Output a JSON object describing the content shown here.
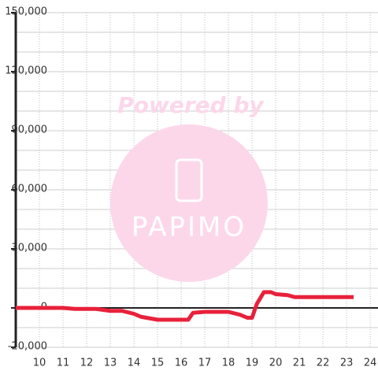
{
  "chart_data": {
    "type": "line",
    "watermark": {
      "title": "Powered by",
      "brand": "PAPIMO"
    },
    "x": [
      9.0,
      11.0,
      11.5,
      12.4,
      13.0,
      13.5,
      14.0,
      14.3,
      15.0,
      16.3,
      16.5,
      17.0,
      18.0,
      18.5,
      18.8,
      19.0,
      19.2,
      19.5,
      19.8,
      20.0,
      20.5,
      20.8,
      21.0,
      23.3
    ],
    "series": [
      {
        "color": "#e8213b",
        "values": [
          0,
          0,
          -500,
          -500,
          -1500,
          -1500,
          -3000,
          -4500,
          -6000,
          -6000,
          -2500,
          -2000,
          -2000,
          -3500,
          -5000,
          -5000,
          2000,
          8000,
          8000,
          7000,
          6500,
          5500,
          5500,
          5500
        ]
      }
    ],
    "xlim": [
      9,
      24.33
    ],
    "xticks": [
      10,
      11,
      12,
      13,
      14,
      15,
      16,
      17,
      18,
      19,
      20,
      21,
      22,
      23,
      24
    ],
    "ylim": [
      -20000,
      150000
    ],
    "yticks": [
      {
        "value": -20000,
        "label": "-20,000"
      },
      0,
      {
        "value": 30000,
        "label": "30,000"
      },
      {
        "value": 60000,
        "label": "60,000"
      },
      {
        "value": 90000,
        "label": "90,000"
      },
      {
        "value": 120000,
        "label": "120,000"
      },
      {
        "value": 150000,
        "label": "150,000"
      }
    ],
    "y_minor_ticks": [
      -10000,
      10000,
      20000,
      40000,
      50000,
      70000,
      80000,
      100000,
      110000,
      130000,
      140000
    ],
    "grid": true
  }
}
